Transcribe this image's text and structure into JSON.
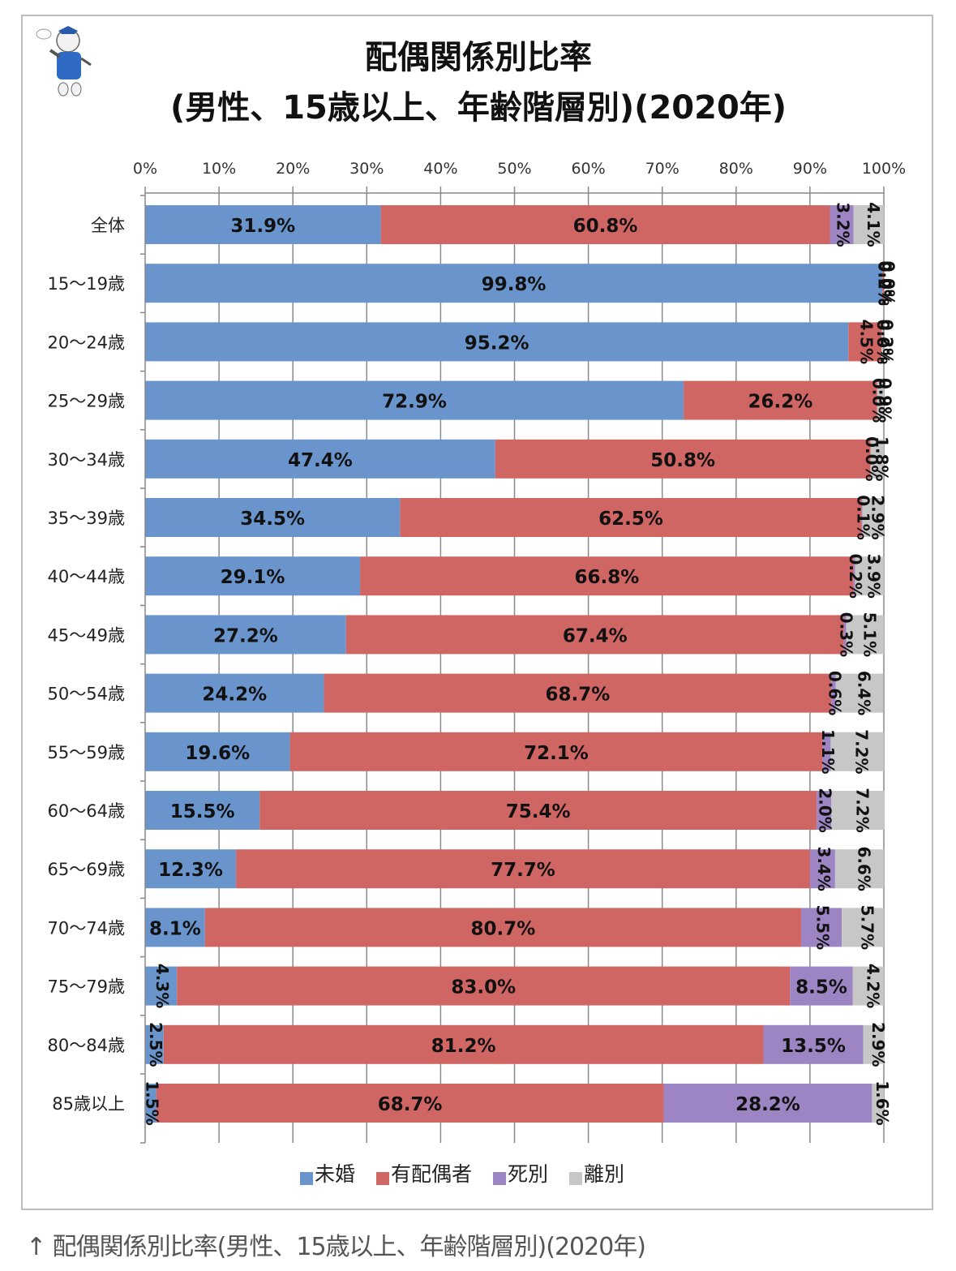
{
  "caption": "↑ 配偶関係別比率(男性、15歳以上、年齢階層別)(2020年)",
  "chart_data": {
    "type": "bar",
    "orientation": "horizontal",
    "stacked": "percent",
    "title_line1": "配偶関係別比率",
    "title_line2": "(男性、15歳以上、年齢階層別)(2020年)",
    "xlabel": "",
    "ylabel": "",
    "xlim": [
      0,
      100
    ],
    "x_ticks": [
      "0%",
      "10%",
      "20%",
      "30%",
      "40%",
      "50%",
      "60%",
      "70%",
      "80%",
      "90%",
      "100%"
    ],
    "x_axis_position": "top",
    "grid": true,
    "legend_position": "bottom",
    "categories": [
      "全体",
      "15〜19歳",
      "20〜24歳",
      "25〜29歳",
      "30〜34歳",
      "35〜39歳",
      "40〜44歳",
      "45〜49歳",
      "50〜54歳",
      "55〜59歳",
      "60〜64歳",
      "65〜69歳",
      "70〜74歳",
      "75〜79歳",
      "80〜84歳",
      "85歳以上"
    ],
    "series": [
      {
        "name": "未婚",
        "color": "#6a95cc",
        "values": [
          31.9,
          99.8,
          95.2,
          72.9,
          47.4,
          34.5,
          29.1,
          27.2,
          24.2,
          19.6,
          15.5,
          12.3,
          8.1,
          4.3,
          2.5,
          1.5
        ]
      },
      {
        "name": "有配偶者",
        "color": "#d06664",
        "values": [
          60.8,
          0.2,
          4.5,
          26.2,
          50.8,
          62.5,
          66.8,
          67.4,
          68.7,
          72.1,
          75.4,
          77.7,
          80.7,
          83.0,
          81.2,
          68.7
        ]
      },
      {
        "name": "死別",
        "color": "#9d84c2",
        "values": [
          3.2,
          0.0,
          0.0,
          0.0,
          0.0,
          0.1,
          0.2,
          0.3,
          0.6,
          1.1,
          2.0,
          3.4,
          5.5,
          8.5,
          13.5,
          28.2
        ]
      },
      {
        "name": "離別",
        "color": "#c7c7c7",
        "values": [
          4.1,
          0.0,
          0.2,
          0.9,
          1.8,
          2.9,
          3.9,
          5.1,
          6.4,
          7.2,
          7.2,
          6.6,
          5.7,
          4.2,
          2.9,
          1.6
        ]
      }
    ]
  }
}
